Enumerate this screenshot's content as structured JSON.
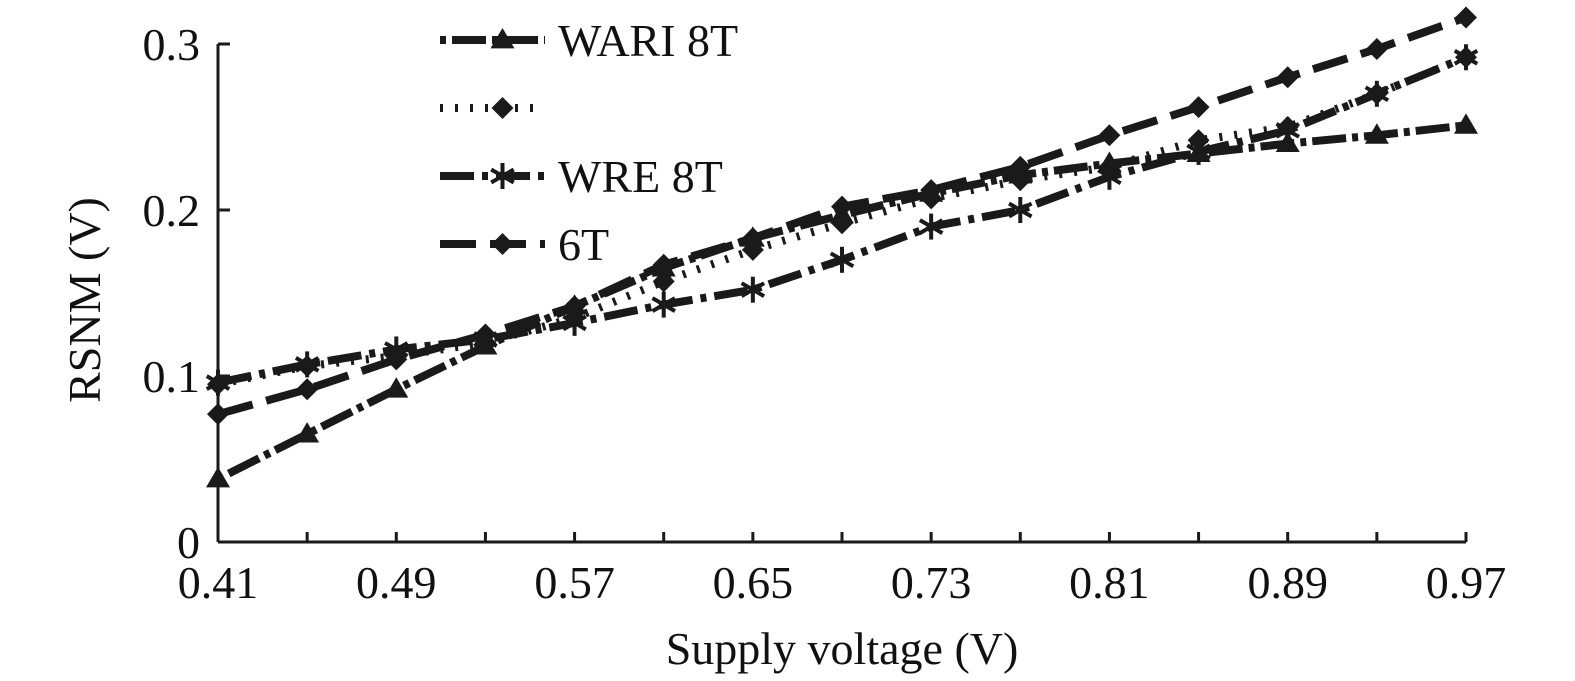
{
  "chart_data": {
    "type": "line",
    "title": "",
    "xlabel": "Supply voltage (V)",
    "ylabel": "RSNM (V)",
    "xlim": [
      0.41,
      0.97
    ],
    "ylim": [
      0,
      0.3
    ],
    "x_ticks": [
      "0.41",
      "0.49",
      "0.57",
      "0.65",
      "0.73",
      "0.81",
      "0.89",
      "0.97"
    ],
    "y_ticks": [
      "0",
      "0.1",
      "0.2",
      "0.3"
    ],
    "x_tick_values": [
      0.41,
      0.49,
      0.57,
      0.65,
      0.73,
      0.81,
      0.89,
      0.97
    ],
    "y_tick_values": [
      0,
      0.1,
      0.2,
      0.3
    ],
    "grid": false,
    "legend_position": "top-left",
    "x": [
      0.41,
      0.45,
      0.49,
      0.53,
      0.57,
      0.61,
      0.65,
      0.69,
      0.73,
      0.77,
      0.81,
      0.85,
      0.89,
      0.93,
      0.97
    ],
    "series": [
      {
        "name": "WARI 8T",
        "dash": "6 6 34 6",
        "marker": "triangle",
        "values": [
          0.038,
          0.065,
          0.092,
          0.118,
          0.142,
          0.165,
          0.183,
          0.197,
          0.21,
          0.221,
          0.228,
          0.234,
          0.24,
          0.245,
          0.251
        ]
      },
      {
        "name": "",
        "dash": "3 12",
        "marker": "diamond",
        "values": [
          0.095,
          0.106,
          0.112,
          0.12,
          0.135,
          0.157,
          0.176,
          0.192,
          0.207,
          0.218,
          0.226,
          0.242,
          0.25,
          0.27,
          0.292
        ]
      },
      {
        "name": "WRE 8T",
        "dash": "34 8 6 8",
        "marker": "asterisk",
        "values": [
          0.096,
          0.107,
          0.116,
          0.122,
          0.132,
          0.143,
          0.152,
          0.17,
          0.19,
          0.2,
          0.22,
          0.235,
          0.248,
          0.27,
          0.292
        ]
      },
      {
        "name": "6T",
        "dash": "36 14",
        "marker": "diamond",
        "values": [
          0.077,
          0.092,
          0.11,
          0.125,
          0.142,
          0.167,
          0.183,
          0.202,
          0.212,
          0.226,
          0.245,
          0.262,
          0.28,
          0.297,
          0.316
        ]
      }
    ]
  },
  "colors": {
    "line": "#1a1a1a",
    "background": "#ffffff"
  }
}
